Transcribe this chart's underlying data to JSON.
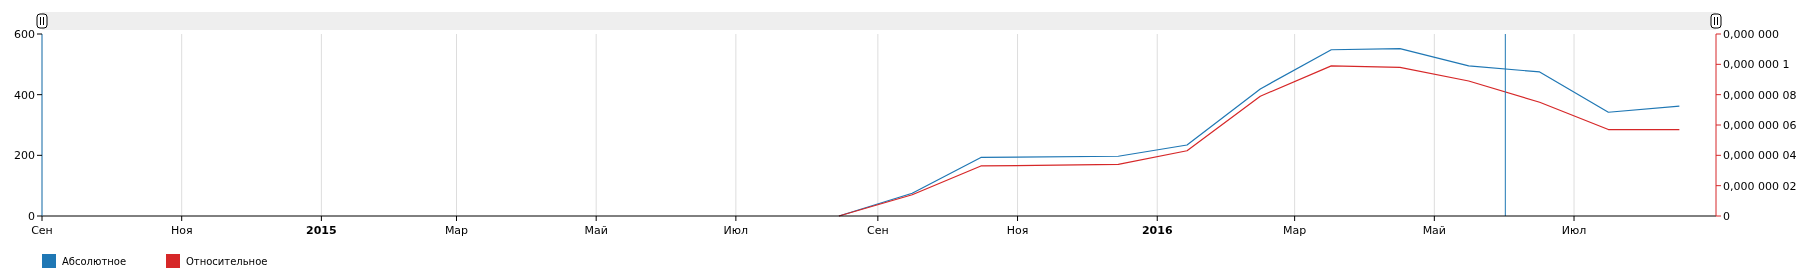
{
  "chart_data": {
    "type": "line",
    "x": [
      "2015-08-15",
      "2015-09-16",
      "2015-10-16",
      "2015-12-15",
      "2016-01-14",
      "2016-02-15",
      "2016-03-17",
      "2016-04-16",
      "2016-05-16",
      "2016-06-16",
      "2016-07-16",
      "2016-08-16"
    ],
    "series": [
      {
        "name": "Абсолютное",
        "color": "#1f77b4",
        "values": [
          0,
          75,
          193,
          197,
          234,
          419,
          548,
          552,
          495,
          475,
          342,
          362
        ]
      },
      {
        "name": "Относительное",
        "color": "#d62728",
        "axis": "y2",
        "values": [
          0,
          1.4e-08,
          3.3e-08,
          3.4e-08,
          4.3e-08,
          7.9e-08,
          9.9e-08,
          9.8e-08,
          8.9e-08,
          7.5e-08,
          5.7e-08,
          5.7e-08
        ]
      }
    ],
    "xlim": [
      "2014-09-01",
      "2016-09-01"
    ],
    "xticks": [
      {
        "value": "2014-09-01",
        "label": "Сен"
      },
      {
        "value": "2014-11-01",
        "label": "Ноя"
      },
      {
        "value": "2015-01-01",
        "label": "2015"
      },
      {
        "value": "2015-03-01",
        "label": "Мар"
      },
      {
        "value": "2015-05-01",
        "label": "Май"
      },
      {
        "value": "2015-07-01",
        "label": "Июл"
      },
      {
        "value": "2015-09-01",
        "label": "Сен"
      },
      {
        "value": "2015-11-01",
        "label": "Ноя"
      },
      {
        "value": "2016-01-01",
        "label": "2016"
      },
      {
        "value": "2016-03-01",
        "label": "Мар"
      },
      {
        "value": "2016-05-01",
        "label": "Май"
      },
      {
        "value": "2016-07-01",
        "label": "Июл"
      }
    ],
    "ylim": [
      0,
      600
    ],
    "yticks": [
      0,
      200,
      400,
      600
    ],
    "y2lim": [
      0,
      1.2e-07
    ],
    "y2ticks": [
      {
        "value": 0,
        "label": "0"
      },
      {
        "value": 2e-08,
        "label": "0,000 000 02"
      },
      {
        "value": 4e-08,
        "label": "0,000 000 04"
      },
      {
        "value": 6e-08,
        "label": "0,000 000 06"
      },
      {
        "value": 8e-08,
        "label": "0,000 000 08"
      },
      {
        "value": 1e-07,
        "label": "0,000 000 1"
      },
      {
        "value": 1.2e-07,
        "label": "0,000 000"
      }
    ],
    "ref_lines": [
      {
        "axis": "x",
        "value": "2016-06-01",
        "color": "#1f77b4"
      }
    ],
    "grid": "x",
    "legend": "bottom left",
    "marker": "none",
    "line_style": "solid"
  }
}
